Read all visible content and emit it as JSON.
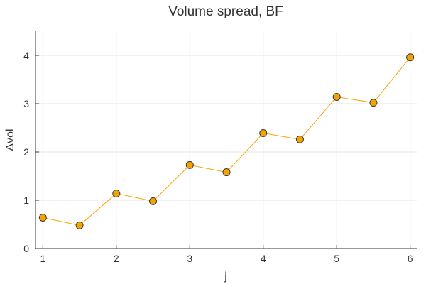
{
  "chart_data": {
    "type": "line",
    "title": "Volume spread, BF",
    "xlabel": "j",
    "ylabel": "Δvol",
    "xlim": [
      0.9,
      6.1
    ],
    "ylim": [
      0,
      4.5
    ],
    "xticks": [
      1,
      2,
      3,
      4,
      5,
      6
    ],
    "yticks": [
      0,
      1,
      2,
      3,
      4
    ],
    "grid": true,
    "legend": "none",
    "series": [
      {
        "name": "Δvol",
        "color": "#f5a300",
        "marker_color": "#f5a300",
        "marker_edge": "#3a3a3a",
        "x": [
          1,
          1.5,
          2,
          2.5,
          3,
          3.5,
          4,
          4.5,
          5,
          5.5,
          6
        ],
        "y": [
          0.64,
          0.48,
          1.14,
          0.98,
          1.73,
          1.58,
          2.39,
          2.26,
          3.14,
          3.02,
          3.96
        ]
      }
    ]
  }
}
